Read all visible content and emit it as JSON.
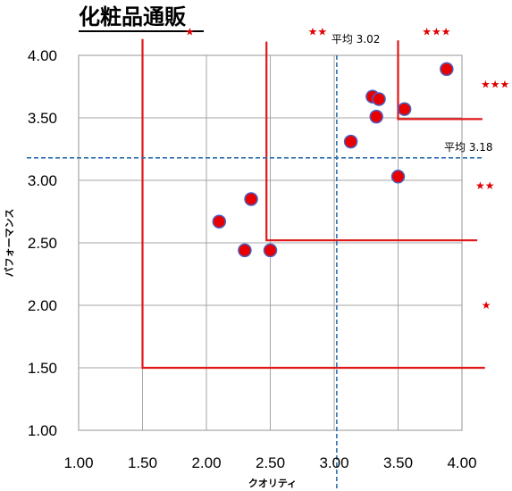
{
  "chart_data": {
    "type": "scatter",
    "title": "化粧品通販",
    "xlabel": "クオリティ",
    "ylabel": "パフォーマンス",
    "xlim": [
      1.0,
      4.0
    ],
    "ylim": [
      1.0,
      4.0
    ],
    "x_ticks": [
      "1.00",
      "1.50",
      "2.00",
      "2.50",
      "3.00",
      "3.50",
      "4.00"
    ],
    "y_ticks": [
      "1.00",
      "1.50",
      "2.00",
      "2.50",
      "3.00",
      "3.50",
      "4.00"
    ],
    "grid": true,
    "points": [
      {
        "x": 2.1,
        "y": 2.67
      },
      {
        "x": 2.3,
        "y": 2.44
      },
      {
        "x": 2.35,
        "y": 2.85
      },
      {
        "x": 2.5,
        "y": 2.44
      },
      {
        "x": 3.13,
        "y": 3.31
      },
      {
        "x": 3.3,
        "y": 3.67
      },
      {
        "x": 3.35,
        "y": 3.65
      },
      {
        "x": 3.33,
        "y": 3.51
      },
      {
        "x": 3.5,
        "y": 3.03
      },
      {
        "x": 3.55,
        "y": 3.57
      },
      {
        "x": 3.88,
        "y": 3.89
      }
    ],
    "averages": {
      "x": {
        "value": 3.02,
        "label": "平均 3.02"
      },
      "y": {
        "value": 3.18,
        "label": "平均 3.18"
      }
    },
    "zones": [
      {
        "corner_x": 1.5,
        "corner_y": 1.5,
        "top_y": 4.13,
        "right_x": 4.18,
        "stars": "★"
      },
      {
        "corner_x": 2.47,
        "corner_y": 2.52,
        "top_y": 4.11,
        "right_x": 4.12,
        "stars": "★★"
      },
      {
        "corner_x": 3.5,
        "corner_y": 3.49,
        "top_y": 4.12,
        "right_x": 4.16,
        "stars": "★★★"
      }
    ],
    "star_labels": [
      {
        "text": "★",
        "x": 1.87,
        "y": 4.16
      },
      {
        "text": "★★",
        "x": 2.87,
        "y": 4.16
      },
      {
        "text": "★★★",
        "x": 3.8,
        "y": 4.16
      },
      {
        "text": "★★★",
        "x": 4.26,
        "y": 3.74
      },
      {
        "text": "★★",
        "x": 4.18,
        "y": 2.93
      },
      {
        "text": "★",
        "x": 4.19,
        "y": 1.97
      }
    ],
    "colors": {
      "point_fill": "#e80000",
      "point_stroke": "#4a5fc0",
      "zone_line": "#e01818",
      "average_line": "#2f6fb0",
      "grid": "#a6a6a6"
    }
  }
}
